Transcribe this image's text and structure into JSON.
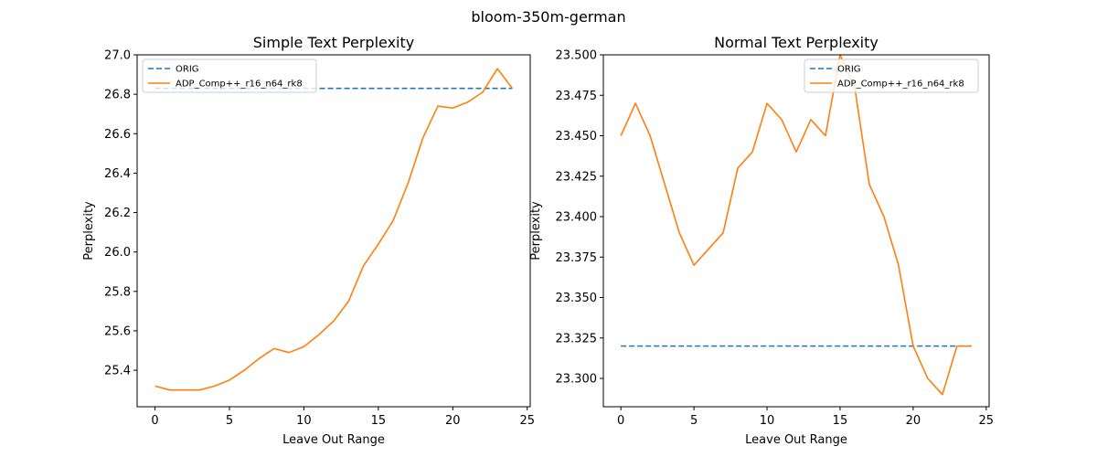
{
  "figure": {
    "suptitle": "bloom-350m-german"
  },
  "chart_data": [
    {
      "type": "line",
      "title": "Simple Text Perplexity",
      "xlabel": "Leave Out Range",
      "ylabel": "Perplexity",
      "xlim": [
        -1.2,
        25.2
      ],
      "ylim": [
        25.215,
        27.0
      ],
      "xticks": [
        0,
        5,
        10,
        15,
        20,
        25
      ],
      "xtick_labels": [
        "0",
        "5",
        "10",
        "15",
        "20",
        "25"
      ],
      "yticks": [
        25.4,
        25.6,
        25.8,
        26.0,
        26.2,
        26.4,
        26.6,
        26.8,
        27.0
      ],
      "ytick_labels": [
        "25.4",
        "25.6",
        "25.8",
        "26.0",
        "26.2",
        "26.4",
        "26.6",
        "26.8",
        "27.0"
      ],
      "grid": false,
      "legend_position": "top-left",
      "series": [
        {
          "name": "ORIG",
          "style": "dashed",
          "color": "#1f77b4",
          "x": [
            0,
            24
          ],
          "y": [
            26.83,
            26.83
          ]
        },
        {
          "name": "ADP_Comp++_r16_n64_rk8",
          "style": "solid",
          "color": "#ff7f0e",
          "x": [
            0,
            1,
            2,
            3,
            4,
            5,
            6,
            7,
            8,
            9,
            10,
            11,
            12,
            13,
            14,
            15,
            16,
            17,
            18,
            19,
            20,
            21,
            22,
            23,
            24
          ],
          "y": [
            25.32,
            25.3,
            25.3,
            25.3,
            25.32,
            25.35,
            25.4,
            25.46,
            25.51,
            25.49,
            25.52,
            25.58,
            25.65,
            25.75,
            25.93,
            26.04,
            26.16,
            26.35,
            26.58,
            26.74,
            26.73,
            26.76,
            26.81,
            26.93,
            26.83
          ]
        }
      ]
    },
    {
      "type": "line",
      "title": "Normal Text Perplexity",
      "xlabel": "Leave Out Range",
      "ylabel": "Perplexity",
      "xlim": [
        -1.2,
        25.2
      ],
      "ylim": [
        23.2825,
        23.5
      ],
      "xticks": [
        0,
        5,
        10,
        15,
        20,
        25
      ],
      "xtick_labels": [
        "0",
        "5",
        "10",
        "15",
        "20",
        "25"
      ],
      "yticks": [
        23.3,
        23.325,
        23.35,
        23.375,
        23.4,
        23.425,
        23.45,
        23.475,
        23.5
      ],
      "ytick_labels": [
        "23.300",
        "23.325",
        "23.350",
        "23.375",
        "23.400",
        "23.425",
        "23.450",
        "23.475",
        "23.500"
      ],
      "grid": false,
      "legend_position": "top-right",
      "series": [
        {
          "name": "ORIG",
          "style": "dashed",
          "color": "#1f77b4",
          "x": [
            0,
            24
          ],
          "y": [
            23.32,
            23.32
          ]
        },
        {
          "name": "ADP_Comp++_r16_n64_rk8",
          "style": "solid",
          "color": "#ff7f0e",
          "x": [
            0,
            1,
            2,
            3,
            4,
            5,
            6,
            7,
            8,
            9,
            10,
            11,
            12,
            13,
            14,
            15,
            16,
            17,
            18,
            19,
            20,
            21,
            22,
            23,
            24
          ],
          "y": [
            23.45,
            23.47,
            23.45,
            23.42,
            23.39,
            23.37,
            23.38,
            23.39,
            23.43,
            23.44,
            23.47,
            23.46,
            23.44,
            23.46,
            23.45,
            23.5,
            23.48,
            23.42,
            23.4,
            23.37,
            23.32,
            23.3,
            23.29,
            23.32,
            23.32
          ]
        }
      ]
    }
  ]
}
